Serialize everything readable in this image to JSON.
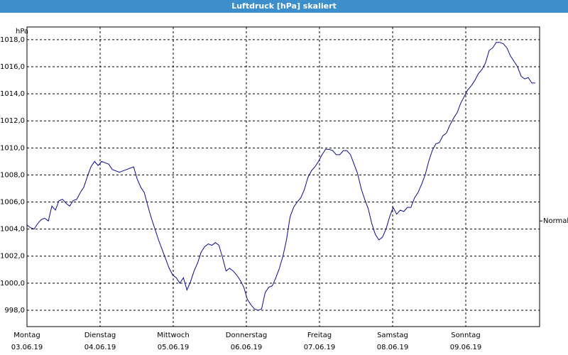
{
  "chart_data": {
    "type": "line",
    "title": "Luftdruck [hPa] skaliert",
    "y_unit_label": "hPa",
    "x": [
      0,
      70,
      140,
      210,
      280,
      350,
      420,
      490,
      560,
      630,
      700,
      770,
      840,
      910,
      980,
      1050,
      1120,
      1190,
      1260,
      1330,
      1400,
      1470,
      1540,
      1610,
      1680,
      1750,
      1820,
      1890,
      1960,
      2030,
      2100,
      2170,
      2240,
      2310,
      2380,
      2450,
      2520,
      2590,
      2660,
      2730,
      2800,
      2870,
      2940,
      3010,
      3080,
      3150,
      3220,
      3290,
      3360,
      3430,
      3500,
      3570,
      3640,
      3710,
      3780,
      3850,
      3920,
      3990,
      4060,
      4130,
      4200,
      4270,
      4340,
      4410,
      4480,
      4550,
      4620,
      4690,
      4760,
      4830,
      4900,
      4970,
      5040,
      5110,
      5180,
      5250,
      5320,
      5390,
      5460,
      5530,
      5600,
      5670,
      5740,
      5810,
      5880,
      5950,
      6020,
      6090,
      6160,
      6230,
      6300,
      6370,
      6440,
      6510,
      6580,
      6650,
      6720,
      6790,
      6860,
      6930,
      7000,
      7070,
      7140,
      7210,
      7280,
      7350,
      7420,
      7490,
      7560,
      7630,
      7700,
      7770,
      7840,
      7910,
      7980,
      8050,
      8120,
      8190,
      8260,
      8330,
      8400,
      8470,
      8540,
      8610,
      8680,
      8750,
      8820,
      8890,
      8960,
      9030,
      9100,
      9170,
      9240,
      9310,
      9380,
      9450,
      9520,
      9590,
      9660,
      9730,
      9800,
      9870,
      9940,
      10010
    ],
    "series": [
      {
        "color": "#0a0a8c",
        "values": [
          1004.3,
          1004.1,
          1004.0,
          1004.4,
          1004.7,
          1004.8,
          1004.6,
          1005.7,
          1005.4,
          1006.1,
          1006.2,
          1005.9,
          1005.7,
          1006.1,
          1006.2,
          1006.7,
          1007.1,
          1007.9,
          1008.6,
          1009.0,
          1008.7,
          1009.0,
          1008.9,
          1008.8,
          1008.4,
          1008.3,
          1008.2,
          1008.3,
          1008.4,
          1008.5,
          1008.6,
          1007.7,
          1007.1,
          1006.7,
          1005.7,
          1004.8,
          1004.0,
          1003.2,
          1002.5,
          1001.8,
          1001.1,
          1000.6,
          1000.4,
          1000.0,
          1000.4,
          999.5,
          1000.1,
          1000.9,
          1001.5,
          1002.3,
          1002.7,
          1002.9,
          1002.8,
          1003.0,
          1002.8,
          1001.9,
          1000.9,
          1001.1,
          1000.9,
          1000.6,
          1000.2,
          999.7,
          998.8,
          998.4,
          998.1,
          998.0,
          998.1,
          999.3,
          999.7,
          999.8,
          1000.4,
          1001.1,
          1002.0,
          1003.2,
          1004.9,
          1005.6,
          1006.0,
          1006.3,
          1006.9,
          1007.8,
          1008.3,
          1008.6,
          1009.0,
          1009.5,
          1009.9,
          1009.9,
          1009.8,
          1009.5,
          1009.5,
          1009.8,
          1009.8,
          1009.5,
          1008.8,
          1008.1,
          1007.0,
          1006.2,
          1005.5,
          1004.4,
          1003.6,
          1003.2,
          1003.4,
          1004.0,
          1004.9,
          1005.6,
          1005.1,
          1005.4,
          1005.3,
          1005.6,
          1005.6,
          1006.3,
          1006.7,
          1007.3,
          1008.0,
          1009.0,
          1009.8,
          1010.3,
          1010.4,
          1010.9,
          1011.1,
          1011.7,
          1012.2,
          1012.6,
          1013.3,
          1013.8,
          1014.3,
          1014.6,
          1015.0,
          1015.5,
          1015.8,
          1016.3,
          1017.2,
          1017.4,
          1017.8,
          1017.8,
          1017.7,
          1017.4,
          1016.8,
          1016.4,
          1016.0,
          1015.3,
          1015.1,
          1015.2,
          1014.8,
          1014.8
        ]
      }
    ],
    "xlim": [
      0,
      10094
    ],
    "xticks": [
      {
        "value": 0,
        "label": "Montag"
      },
      {
        "value": 1440,
        "label": "Dienstag"
      },
      {
        "value": 2880,
        "label": "Mittwoch"
      },
      {
        "value": 4320,
        "label": "Donnerstag"
      },
      {
        "value": 5760,
        "label": "Freitag"
      },
      {
        "value": 7200,
        "label": "Samstag"
      },
      {
        "value": 8640,
        "label": "Sonntag"
      }
    ],
    "xtick_dates": [
      "03.06.19",
      "04.06.19",
      "05.06.19",
      "06.06.19",
      "07.06.19",
      "08.06.19",
      "09.06.19"
    ],
    "ylim": [
      996.79,
      1018.94
    ],
    "yticks": [
      {
        "value": 998,
        "label": "998,0"
      },
      {
        "value": 1000,
        "label": "1000,0"
      },
      {
        "value": 1002,
        "label": "1002,0"
      },
      {
        "value": 1004,
        "label": "1004,0"
      },
      {
        "value": 1006,
        "label": "1006,0"
      },
      {
        "value": 1008,
        "label": "1008,0"
      },
      {
        "value": 1010,
        "label": "1010,0"
      },
      {
        "value": 1012,
        "label": "1012,0"
      },
      {
        "value": 1014,
        "label": "1014,0"
      },
      {
        "value": 1016,
        "label": "1016,0"
      },
      {
        "value": 1018,
        "label": "1018,0"
      }
    ],
    "reference": {
      "label": "Normal",
      "value": 1004.6
    },
    "grid": true
  }
}
